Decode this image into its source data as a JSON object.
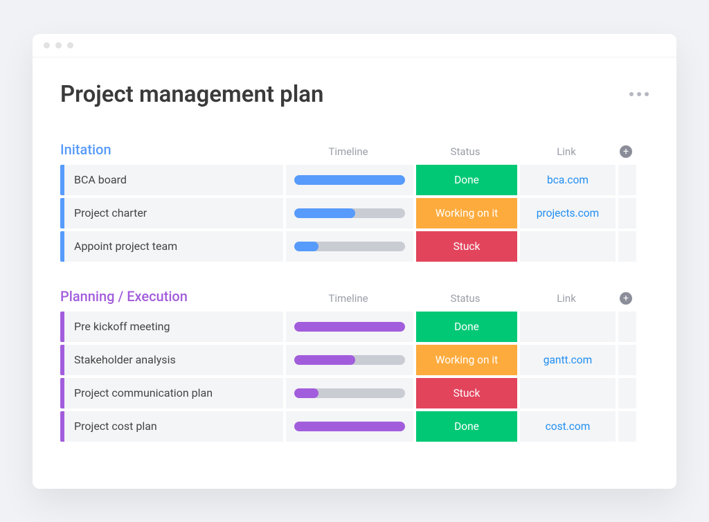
{
  "page": {
    "title": "Project management plan"
  },
  "columns": {
    "timeline": "Timeline",
    "status": "Status",
    "link": "Link"
  },
  "colors": {
    "done": "#00c875",
    "working": "#fdab3d",
    "stuck": "#e2445c",
    "link": "#1f8ef1",
    "track": "#c9ccd3",
    "cell_bg": "#f4f5f7",
    "more_dots": "#b5b7c0",
    "add_bg": "#8b8e99"
  },
  "groups": [
    {
      "title": "Initation",
      "color": "#579bfc",
      "rows": [
        {
          "name": "BCA board",
          "progress": 100,
          "status_label": "Done",
          "status_color": "#00c875",
          "link": "bca.com"
        },
        {
          "name": "Project charter",
          "progress": 55,
          "status_label": "Working on it",
          "status_color": "#fdab3d",
          "link": "projects.com"
        },
        {
          "name": "Appoint project team",
          "progress": 22,
          "status_label": "Stuck",
          "status_color": "#e2445c",
          "link": ""
        }
      ]
    },
    {
      "title": "Planning / Execution",
      "color": "#a25ddc",
      "rows": [
        {
          "name": "Pre kickoff meeting",
          "progress": 100,
          "status_label": "Done",
          "status_color": "#00c875",
          "link": ""
        },
        {
          "name": "Stakeholder analysis",
          "progress": 55,
          "status_label": "Working on it",
          "status_color": "#fdab3d",
          "link": "gantt.com"
        },
        {
          "name": "Project communication plan",
          "progress": 22,
          "status_label": "Stuck",
          "status_color": "#e2445c",
          "link": ""
        },
        {
          "name": "Project cost plan",
          "progress": 100,
          "status_label": "Done",
          "status_color": "#00c875",
          "link": "cost.com"
        }
      ]
    }
  ]
}
